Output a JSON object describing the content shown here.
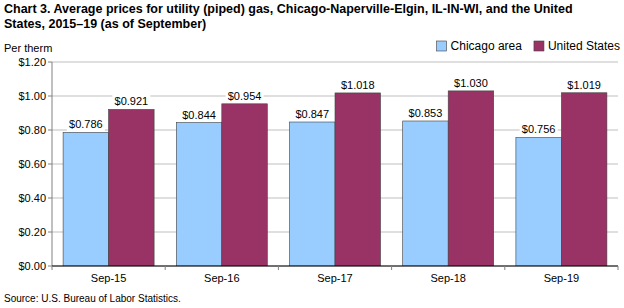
{
  "chart_data": {
    "type": "bar",
    "title": "Chart 3. Average prices for utility (piped) gas, Chicago-Naperville-Elgin, IL-IN-WI, and the United States, 2015–19 (as of September)",
    "y_label": "Per therm",
    "categories": [
      "Sep-15",
      "Sep-16",
      "Sep-17",
      "Sep-18",
      "Sep-19"
    ],
    "series": [
      {
        "name": "Chicago area",
        "color": "#99ccff",
        "values": [
          0.786,
          0.844,
          0.847,
          0.853,
          0.756
        ],
        "value_labels": [
          "$0.786",
          "$0.844",
          "$0.847",
          "$0.853",
          "$0.756"
        ]
      },
      {
        "name": "United States",
        "color": "#993366",
        "values": [
          0.921,
          0.954,
          1.018,
          1.03,
          1.019
        ],
        "value_labels": [
          "$0.921",
          "$0.954",
          "$1.018",
          "$1.030",
          "$1.019"
        ]
      }
    ],
    "ylim": [
      0,
      1.2
    ],
    "yticks": [
      {
        "value": 0,
        "label": "$0.00"
      },
      {
        "value": 0.2,
        "label": "$0.20"
      },
      {
        "value": 0.4,
        "label": "$0.40"
      },
      {
        "value": 0.6,
        "label": "$0.60"
      },
      {
        "value": 0.8,
        "label": "$0.80"
      },
      {
        "value": 1.0,
        "label": "$1.00"
      },
      {
        "value": 1.2,
        "label": "$1.20"
      }
    ],
    "grid": true,
    "data_labels": true,
    "legend": "top-right",
    "source": "Source: U.S. Bureau of Labor Statistics."
  }
}
